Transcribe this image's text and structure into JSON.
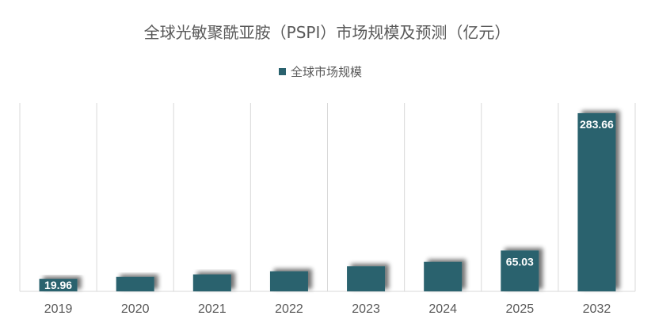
{
  "chart_data": {
    "type": "bar",
    "title": "全球光敏聚酰亚胺（PSPI）市场规模及预测（亿元）",
    "categories": [
      "2019",
      "2020",
      "2021",
      "2022",
      "2023",
      "2024",
      "2025",
      "2032"
    ],
    "series": [
      {
        "name": "全球市场规模",
        "values": [
          19.96,
          23,
          27,
          32,
          40,
          47,
          65.03,
          283.66
        ],
        "color": "#2a626e"
      }
    ],
    "data_labels": [
      "19.96",
      "",
      "",
      "",
      "",
      "",
      "65.03",
      "283.66"
    ],
    "ylim": [
      0,
      300
    ],
    "xlabel": "",
    "ylabel": "",
    "legend_position": "top",
    "grid": "vertical"
  }
}
